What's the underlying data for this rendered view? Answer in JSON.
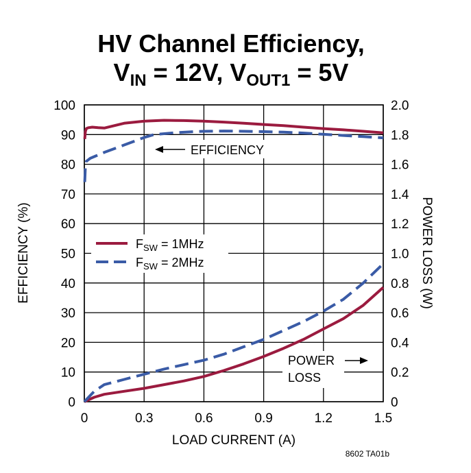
{
  "chart_data": {
    "type": "line",
    "title_line1": "HV Channel Efficiency,",
    "title_line2": {
      "v_in_base": "V",
      "v_in_sub": "IN",
      "v_in_value": " = 12V, ",
      "v_out_base": "V",
      "v_out_sub": "OUT1",
      "v_out_value": " = 5V"
    },
    "xlabel": "LOAD CURRENT (A)",
    "ylabel_left": "EFFICIENCY (%)",
    "ylabel_right": "POWER LOSS (W)",
    "xlim": [
      0,
      1.5
    ],
    "ylim_left": [
      0,
      100
    ],
    "ylim_right": [
      0,
      2.0
    ],
    "x_ticks": [
      "0",
      "0.3",
      "0.6",
      "0.9",
      "1.2",
      "1.5"
    ],
    "y_left_ticks": [
      "0",
      "10",
      "20",
      "30",
      "40",
      "50",
      "60",
      "70",
      "80",
      "90",
      "100"
    ],
    "y_right_ticks": [
      "0",
      "0.2",
      "0.4",
      "0.6",
      "0.8",
      "1.0",
      "1.2",
      "1.4",
      "1.6",
      "1.8",
      "2.0"
    ],
    "grid": true,
    "legend": {
      "position": "middle-left",
      "items": [
        {
          "label_base": "F",
          "label_sub": "SW",
          "label_value": " = 1MHz",
          "style": "solid",
          "color": "#9B1B3F"
        },
        {
          "label_base": "F",
          "label_sub": "SW",
          "label_value": " = 2MHz",
          "style": "dashed",
          "color": "#3A5BA6"
        }
      ]
    },
    "annotations": {
      "efficiency": "EFFICIENCY",
      "power_line1": "POWER",
      "power_line2": "LOSS"
    },
    "series": [
      {
        "name": "1MHz efficiency",
        "axis": "left",
        "style": "solid",
        "color": "#9B1B3F",
        "x": [
          0.002,
          0.005,
          0.01,
          0.02,
          0.04,
          0.07,
          0.1,
          0.15,
          0.2,
          0.3,
          0.4,
          0.5,
          0.6,
          0.7,
          0.8,
          0.9,
          1.0,
          1.1,
          1.2,
          1.3,
          1.4,
          1.5
        ],
        "y": [
          88.5,
          91.0,
          92.0,
          92.3,
          92.5,
          92.3,
          92.2,
          93.0,
          93.8,
          94.5,
          94.8,
          94.7,
          94.5,
          94.2,
          93.8,
          93.4,
          93.0,
          92.5,
          92.0,
          91.6,
          91.1,
          90.6
        ]
      },
      {
        "name": "2MHz efficiency",
        "axis": "left",
        "style": "dashed",
        "color": "#3A5BA6",
        "x": [
          0.002,
          0.005,
          0.01,
          0.03,
          0.1,
          0.2,
          0.3,
          0.35,
          0.45,
          0.55,
          0.6,
          0.7,
          0.8,
          0.9,
          1.0,
          1.1,
          1.2,
          1.3,
          1.4,
          1.5
        ],
        "y": [
          74.0,
          79.0,
          81.0,
          82.0,
          84.0,
          86.5,
          89.0,
          90.0,
          90.6,
          91.0,
          91.1,
          91.2,
          91.1,
          91.0,
          90.8,
          90.5,
          90.1,
          89.7,
          89.3,
          88.9
        ]
      },
      {
        "name": "1MHz power loss",
        "axis": "right",
        "style": "solid",
        "color": "#9B1B3F",
        "x": [
          0,
          0.05,
          0.1,
          0.2,
          0.3,
          0.4,
          0.5,
          0.6,
          0.7,
          0.8,
          0.9,
          1.0,
          1.1,
          1.2,
          1.3,
          1.4,
          1.5
        ],
        "y": [
          0,
          0.03,
          0.05,
          0.07,
          0.09,
          0.115,
          0.14,
          0.17,
          0.21,
          0.255,
          0.305,
          0.36,
          0.42,
          0.49,
          0.56,
          0.65,
          0.77
        ]
      },
      {
        "name": "2MHz power loss",
        "axis": "right",
        "style": "dashed",
        "color": "#3A5BA6",
        "x": [
          0,
          0.05,
          0.1,
          0.2,
          0.3,
          0.4,
          0.5,
          0.6,
          0.7,
          0.8,
          0.9,
          1.0,
          1.1,
          1.2,
          1.3,
          1.4,
          1.5
        ],
        "y": [
          0,
          0.07,
          0.115,
          0.15,
          0.185,
          0.22,
          0.25,
          0.28,
          0.32,
          0.37,
          0.42,
          0.48,
          0.54,
          0.61,
          0.69,
          0.8,
          0.93
        ]
      }
    ],
    "figure_id": "8602 TA01b"
  }
}
